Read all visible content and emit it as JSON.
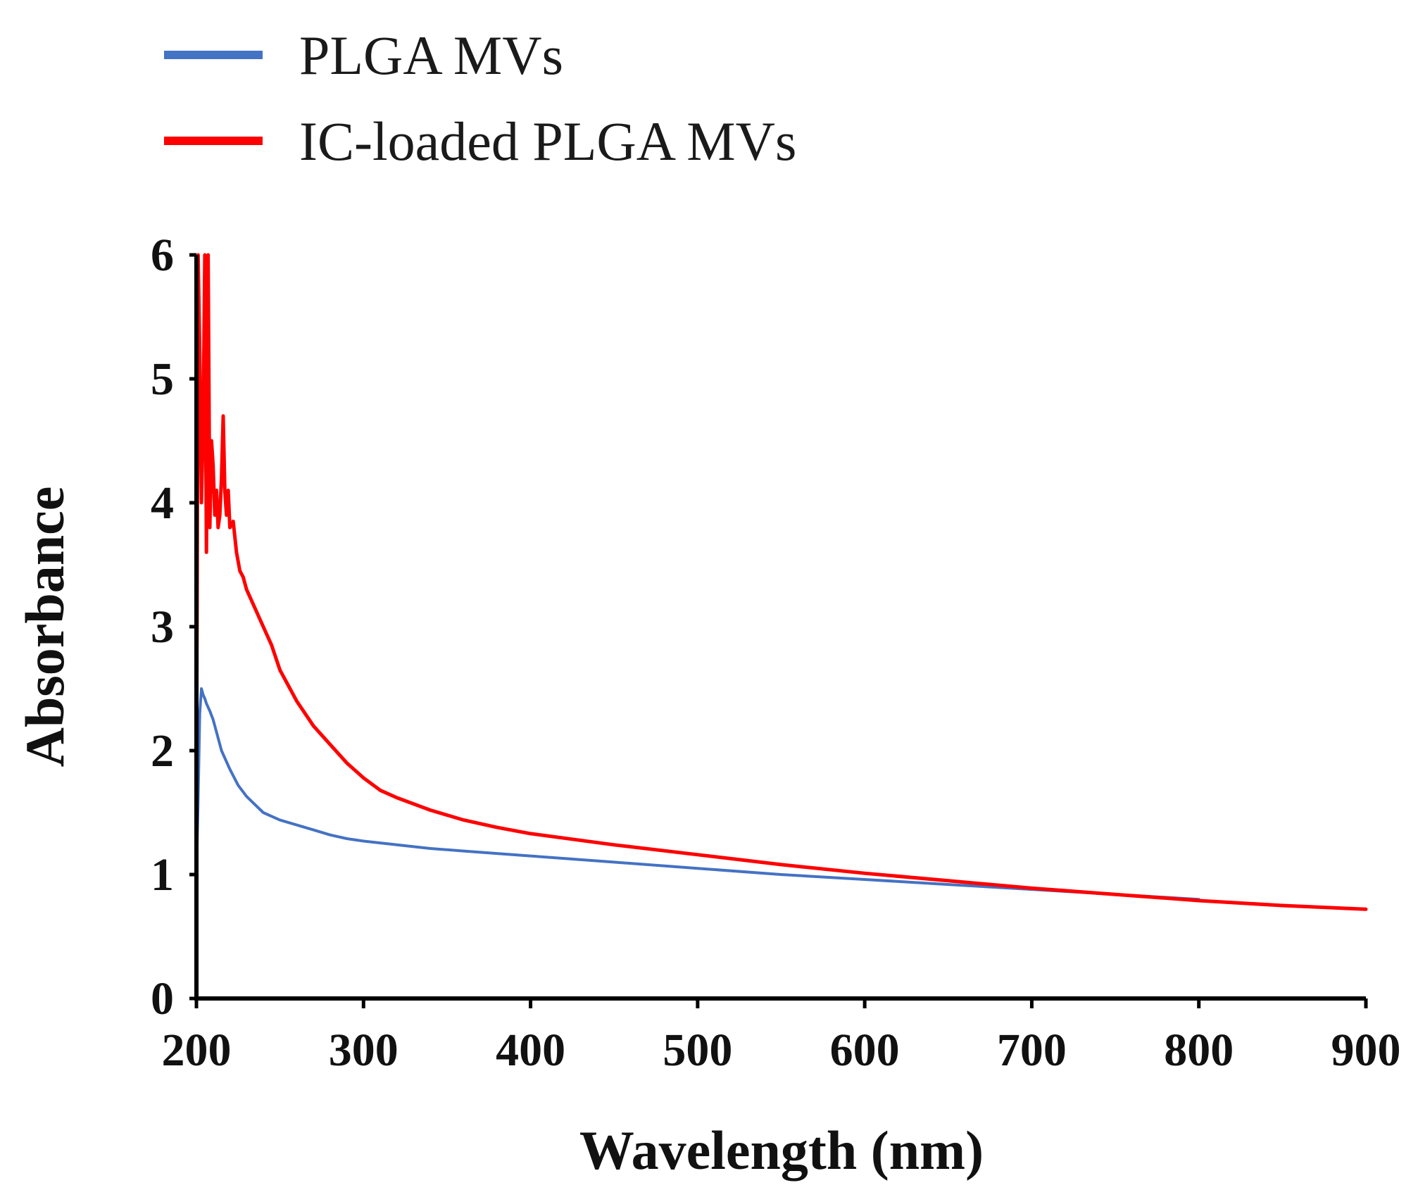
{
  "chart_data": {
    "type": "line",
    "title": "",
    "xlabel": "Wavelength (nm)",
    "ylabel": "Absorbance",
    "xlim": [
      200,
      900
    ],
    "ylim": [
      0,
      6
    ],
    "xticks": [
      "200",
      "300",
      "400",
      "500",
      "600",
      "700",
      "800",
      "900"
    ],
    "yticks": [
      "0",
      "1",
      "2",
      "3",
      "4",
      "5",
      "6"
    ],
    "grid": false,
    "legend_position": "top-left",
    "series": [
      {
        "name": "PLGA MVs",
        "color": "#4472c4",
        "x": [
          200,
          201,
          202,
          203,
          204,
          205,
          206,
          207,
          208,
          210,
          212,
          215,
          220,
          225,
          230,
          240,
          250,
          260,
          270,
          280,
          290,
          300,
          320,
          340,
          360,
          380,
          400,
          450,
          500,
          550,
          600,
          650,
          700,
          750,
          800
        ],
        "y": [
          1.0,
          1.6,
          2.3,
          2.5,
          2.45,
          2.42,
          2.38,
          2.35,
          2.32,
          2.25,
          2.15,
          2.0,
          1.85,
          1.72,
          1.63,
          1.5,
          1.44,
          1.4,
          1.36,
          1.32,
          1.29,
          1.27,
          1.24,
          1.21,
          1.19,
          1.17,
          1.15,
          1.1,
          1.05,
          1.0,
          0.96,
          0.92,
          0.88,
          0.84,
          0.8
        ]
      },
      {
        "name": "IC-loaded PLGA MVs",
        "color": "#ff0000",
        "x": [
          200,
          201,
          202,
          203,
          204,
          205,
          206,
          207,
          208,
          209,
          210,
          211,
          212,
          213,
          214,
          215,
          216,
          217,
          218,
          219,
          220,
          222,
          224,
          226,
          228,
          230,
          235,
          240,
          245,
          250,
          260,
          270,
          280,
          290,
          300,
          310,
          320,
          340,
          360,
          380,
          400,
          450,
          500,
          550,
          600,
          650,
          700,
          750,
          800,
          850,
          900
        ],
        "y": [
          1.5,
          6.0,
          5.2,
          4.0,
          4.6,
          6.0,
          3.6,
          6.0,
          3.8,
          4.5,
          4.3,
          3.9,
          4.1,
          3.8,
          3.9,
          4.2,
          4.7,
          4.1,
          3.9,
          4.1,
          3.8,
          3.85,
          3.6,
          3.45,
          3.4,
          3.3,
          3.15,
          3.0,
          2.85,
          2.65,
          2.4,
          2.2,
          2.05,
          1.9,
          1.78,
          1.68,
          1.62,
          1.52,
          1.44,
          1.38,
          1.33,
          1.24,
          1.16,
          1.08,
          1.01,
          0.95,
          0.89,
          0.84,
          0.79,
          0.75,
          0.72
        ]
      }
    ]
  }
}
